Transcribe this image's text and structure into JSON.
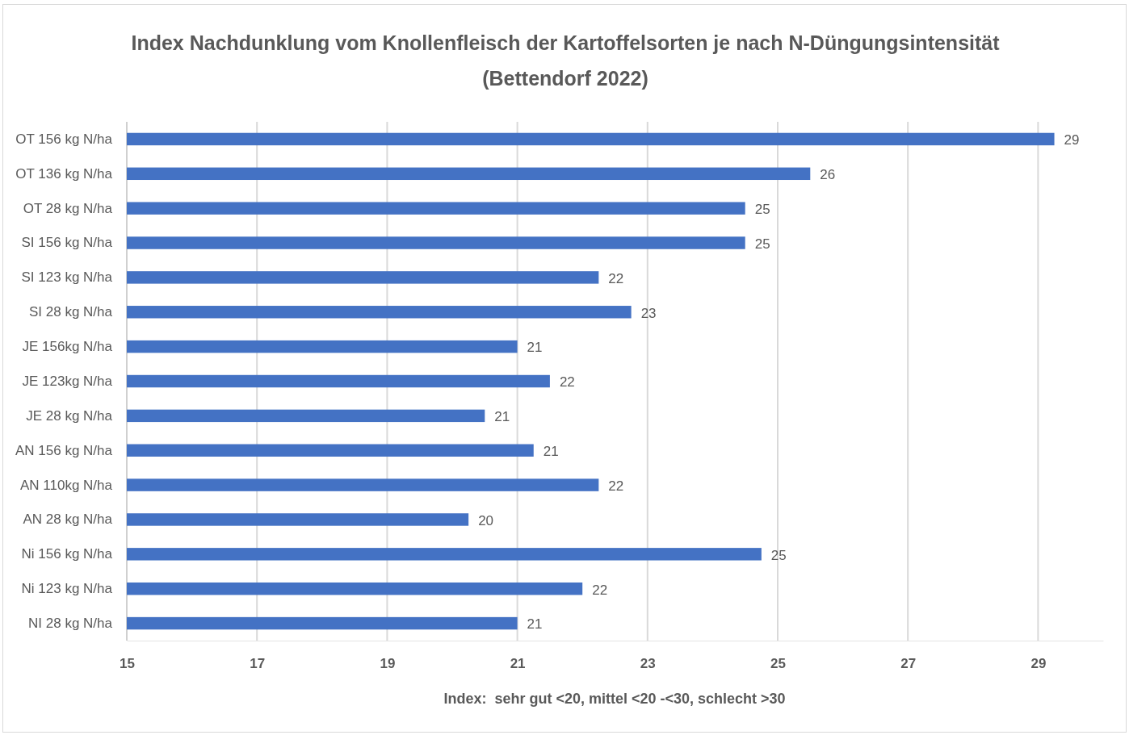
{
  "chart_data": {
    "type": "bar",
    "orientation": "horizontal",
    "title": "Index Nachdunklung vom Knollenfleisch der Kartoffelsorten je nach N-Düngungsintensität",
    "subtitle": "(Bettendorf 2022)",
    "xlabel": "Index:  sehr gut <20, mittel <20 -<30, schlecht >30",
    "categories": [
      "OT 156 kg N/ha",
      "OT 136 kg N/ha",
      "OT 28 kg N/ha",
      "SI 156 kg N/ha",
      "SI 123 kg N/ha",
      "SI 28 kg N/ha",
      "JE 156kg N/ha",
      "JE 123kg N/ha",
      "JE 28 kg N/ha",
      "AN 156 kg N/ha",
      "AN 110kg N/ha",
      "AN 28 kg N/ha",
      "Ni 156 kg N/ha",
      "Ni 123 kg N/ha",
      "NI 28 kg N/ha"
    ],
    "values": [
      29.25,
      25.5,
      24.5,
      24.5,
      22.25,
      22.75,
      21,
      21.5,
      20.5,
      21.25,
      22.25,
      20.25,
      24.75,
      22,
      21
    ],
    "value_labels": [
      "29",
      "26",
      "25",
      "25",
      "22",
      "23",
      "21",
      "22",
      "21",
      "21",
      "22",
      "20",
      "25",
      "22",
      "21"
    ],
    "color": "#4472c4",
    "xlim": [
      15,
      30
    ],
    "xticks": [
      15,
      17,
      19,
      21,
      23,
      25,
      27,
      29
    ],
    "grid": "x"
  }
}
